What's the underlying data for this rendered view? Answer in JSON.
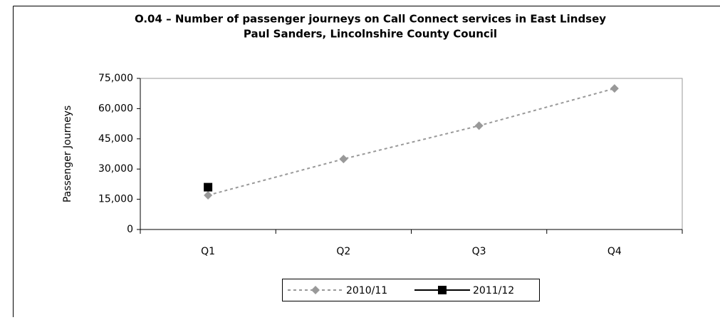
{
  "chart_data": {
    "type": "line",
    "title": "O.04 – Number of passenger journeys on Call Connect services in East Lindsey",
    "subtitle": "Paul Sanders, Lincolnshire County Council",
    "y_label": "Passenger Journeys",
    "categories": [
      "Q1",
      "Q2",
      "Q3",
      "Q4"
    ],
    "series": [
      {
        "name": "2010/11",
        "color": "#999999",
        "dashed": true,
        "marker": "diamond",
        "values": [
          17000,
          35000,
          51500,
          70000
        ]
      },
      {
        "name": "2011/12",
        "color": "#000000",
        "dashed": false,
        "marker": "square",
        "values": [
          21000,
          null,
          null,
          null
        ]
      }
    ],
    "ylim": [
      0,
      75000
    ],
    "yticks": [
      0,
      {
        "value": 15000,
        "label": "15,000"
      },
      {
        "value": 30000,
        "label": "30,000"
      },
      {
        "value": 45000,
        "label": "45,000"
      },
      {
        "value": 60000,
        "label": "60,000"
      },
      {
        "value": 75000,
        "label": "75,000"
      }
    ],
    "legend": "bottom"
  }
}
